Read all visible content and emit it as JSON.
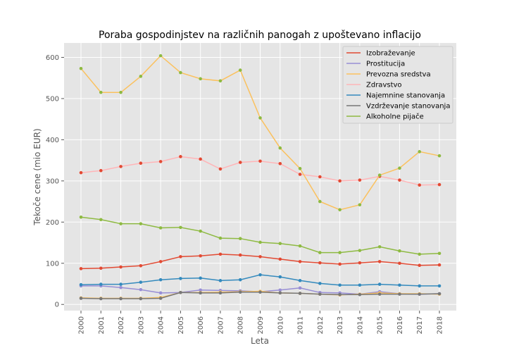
{
  "chart_data": {
    "type": "line",
    "title": "Poraba gospodinjstev na različnih panogah z upoštevano inflacijo",
    "xlabel": "Leta",
    "ylabel": "Tekoče cene (mio EUR)",
    "ylim": [
      -15,
      635
    ],
    "yticks": [
      0,
      100,
      200,
      300,
      400,
      500,
      600
    ],
    "grid": true,
    "legend_position": "top-right",
    "x": [
      "2000",
      "2001",
      "2002",
      "2003",
      "2004",
      "2005",
      "2006",
      "2007",
      "2008",
      "2009",
      "2010",
      "2011",
      "2012",
      "2013",
      "2014",
      "2015",
      "2016",
      "2017",
      "2018"
    ],
    "series": [
      {
        "name": "Izobraževanje",
        "color": "#e24a33",
        "marker_color": "#e24a33",
        "values": [
          87,
          88,
          91,
          94,
          104,
          116,
          118,
          122,
          120,
          116,
          110,
          104,
          101,
          98,
          101,
          104,
          100,
          95,
          96
        ]
      },
      {
        "name": "Prostitucija",
        "color": "#988ed5",
        "marker_color": "#988ed5",
        "values": [
          45,
          45,
          41,
          36,
          28,
          29,
          35,
          34,
          33,
          31,
          35,
          40,
          29,
          28,
          25,
          31,
          26,
          25,
          26
        ]
      },
      {
        "name": "Prevozna sredstva",
        "color": "#fbc15e",
        "marker_color": "#fbc15e",
        "values": [
          16,
          15,
          15,
          15,
          17,
          29,
          29,
          30,
          31,
          32,
          28,
          27,
          25,
          23,
          25,
          28,
          26,
          26,
          25
        ]
      },
      {
        "name": "Zdravstvo",
        "color": "#ffb5b8",
        "marker_color": "#e24a33",
        "values": [
          320,
          325,
          335,
          343,
          347,
          359,
          353,
          329,
          345,
          348,
          342,
          316,
          310,
          300,
          302,
          311,
          302,
          290,
          291
        ]
      },
      {
        "name": "Najemnine stanovanja",
        "color": "#348abd",
        "marker_color": "#348abd",
        "values": [
          48,
          49,
          49,
          54,
          60,
          63,
          64,
          58,
          60,
          72,
          67,
          58,
          51,
          47,
          47,
          49,
          47,
          45,
          45
        ]
      },
      {
        "name": "Vzdrževanje stanovanja",
        "color": "#777777",
        "marker_color": "#777777",
        "values": [
          15,
          14,
          14,
          14,
          15,
          29,
          28,
          28,
          30,
          30,
          28,
          27,
          25,
          24,
          24,
          25,
          25,
          25,
          26
        ]
      },
      {
        "name": "Alkoholne pijače",
        "color": "#8eba42",
        "marker_color": "#8eba42",
        "values": [
          212,
          206,
          196,
          196,
          186,
          187,
          178,
          161,
          160,
          151,
          148,
          142,
          126,
          126,
          131,
          140,
          130,
          122,
          124
        ]
      },
      {
        "name": "",
        "legend": false,
        "color": "#fbc15e",
        "marker_color": "#8eba42",
        "values": [
          573,
          515,
          515,
          554,
          604,
          563,
          548,
          543,
          569,
          453,
          380,
          330,
          250,
          230,
          242,
          314,
          331,
          371,
          361
        ]
      }
    ]
  }
}
